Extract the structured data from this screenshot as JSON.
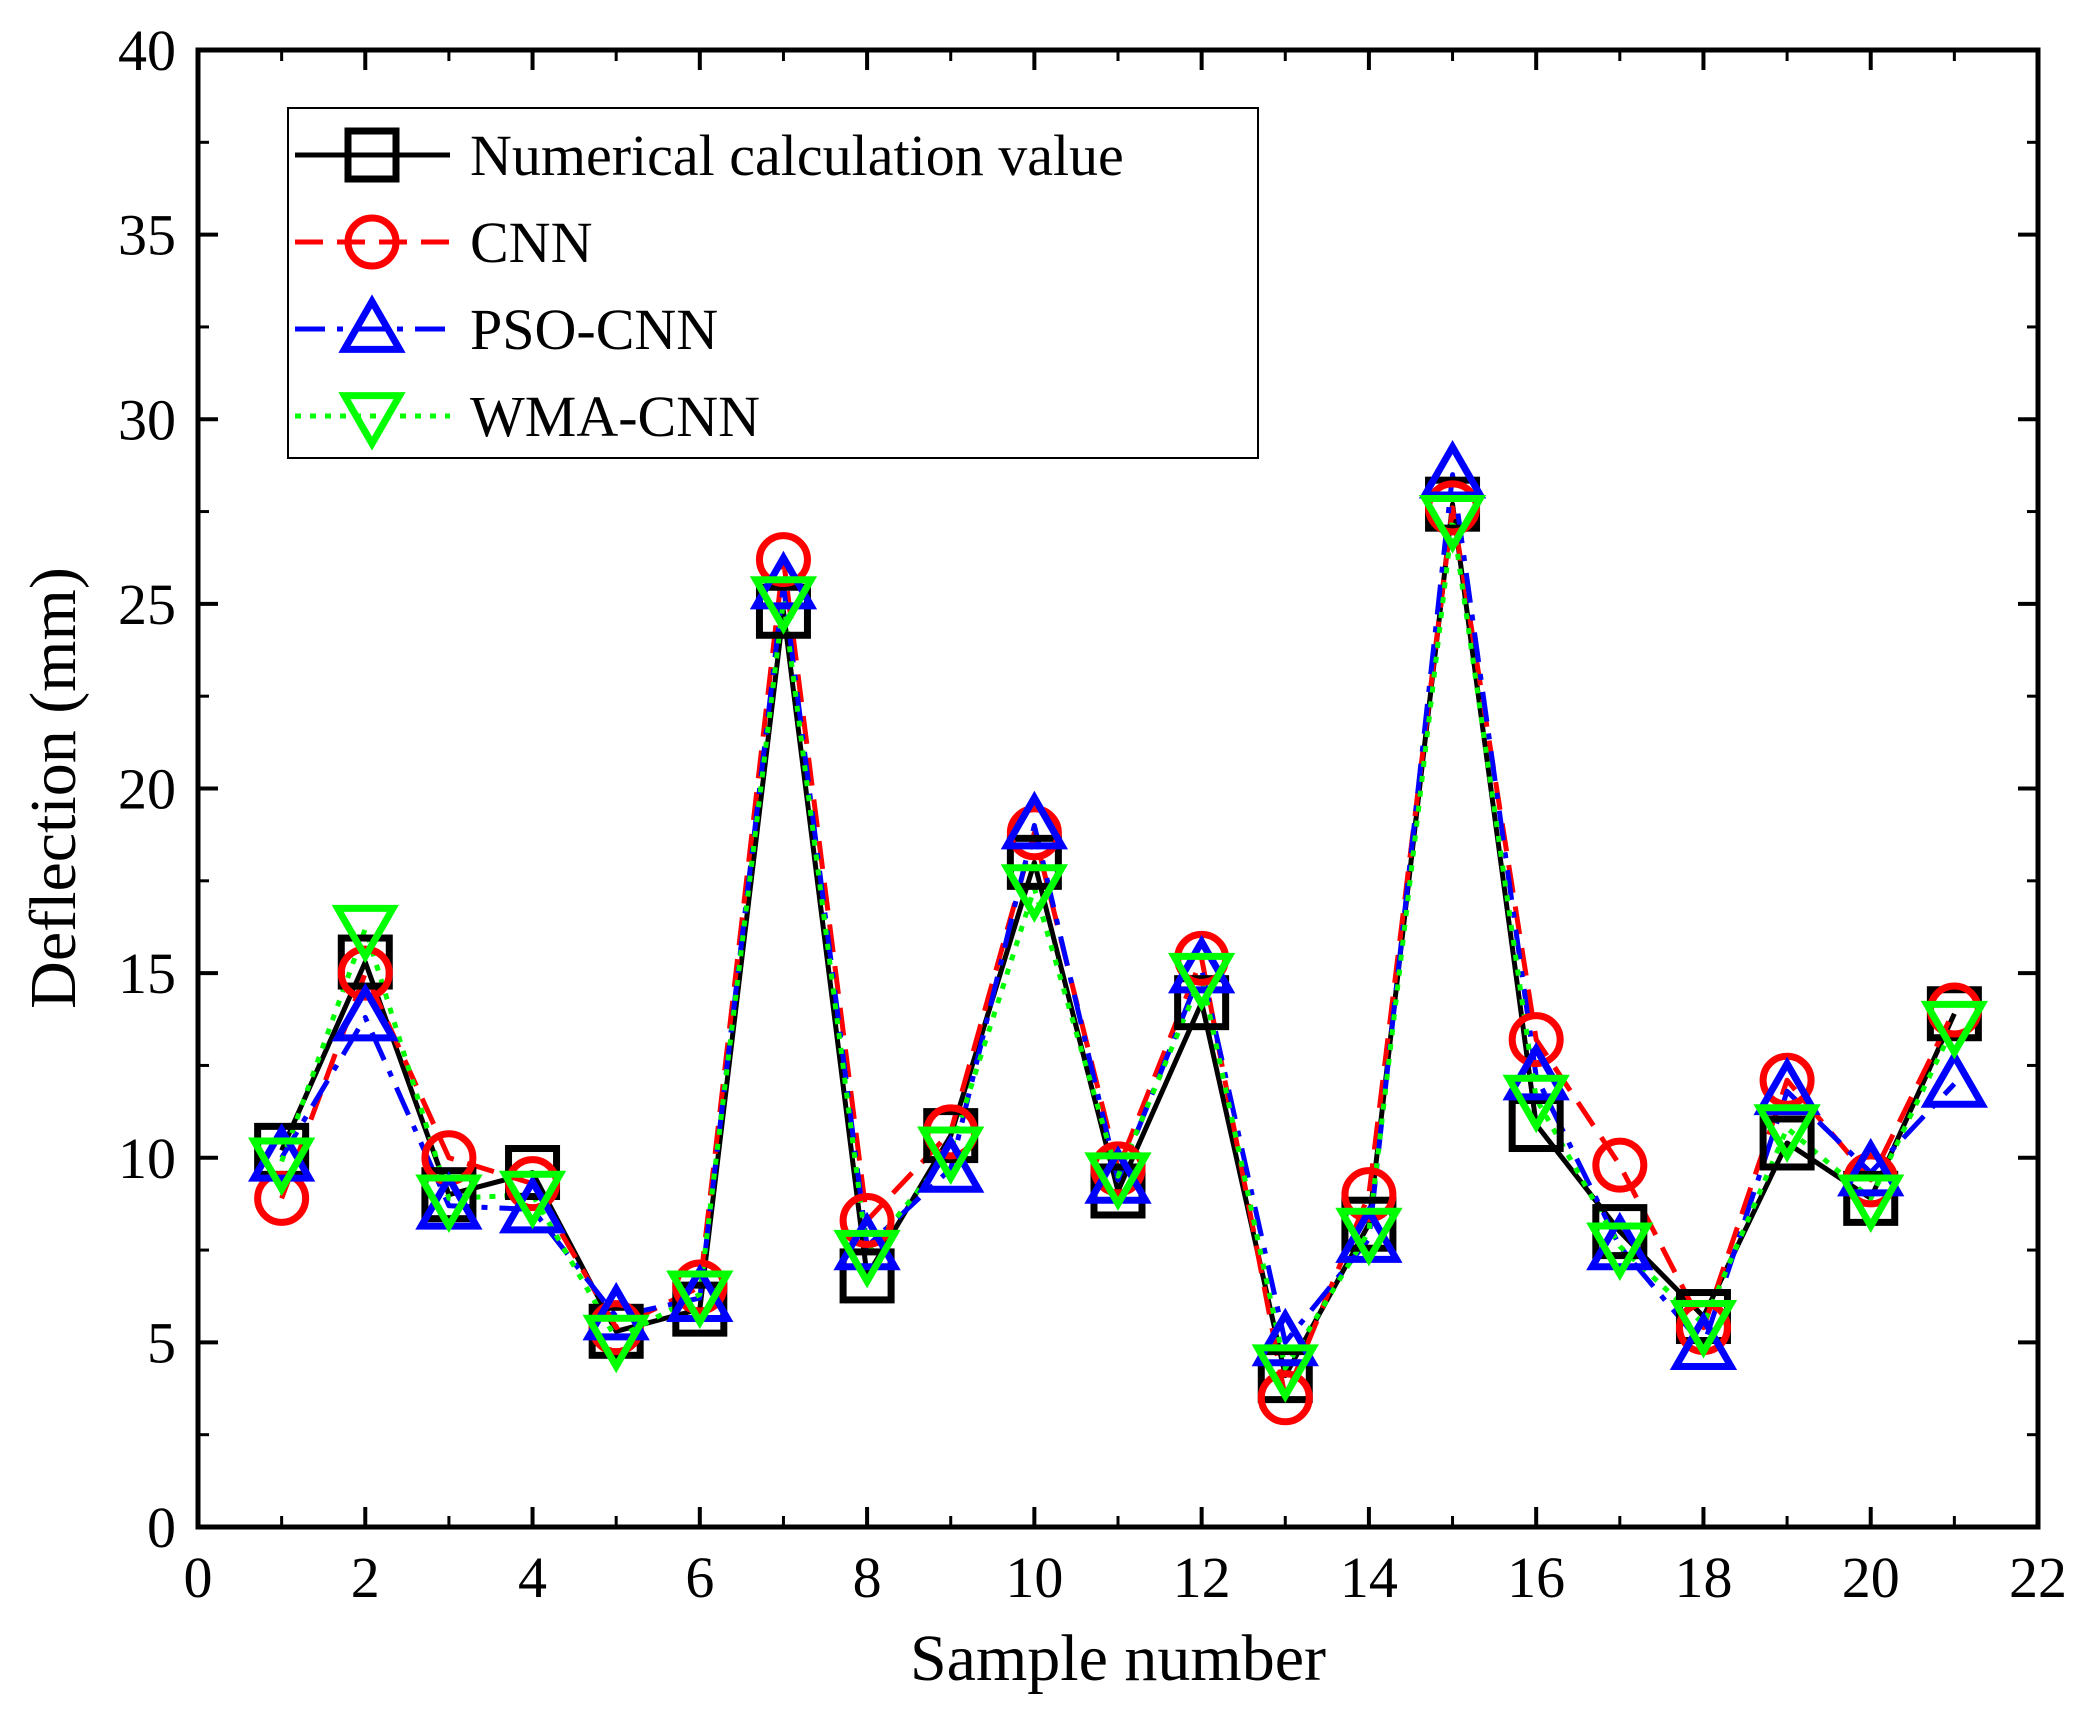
{
  "chart_data": {
    "type": "line",
    "title": "",
    "xlabel": "Sample number",
    "ylabel": "Deflection (mm)",
    "xlim": [
      0,
      22
    ],
    "ylim": [
      0,
      40
    ],
    "xticks": [
      0,
      2,
      4,
      6,
      8,
      10,
      12,
      14,
      16,
      18,
      20,
      22
    ],
    "yticks": [
      0,
      5,
      10,
      15,
      20,
      25,
      30,
      35,
      40
    ],
    "grid": false,
    "legend_position": "top-left",
    "x": [
      1,
      2,
      3,
      4,
      5,
      6,
      7,
      8,
      9,
      10,
      11,
      12,
      13,
      14,
      15,
      16,
      17,
      18,
      19,
      20,
      21
    ],
    "series": [
      {
        "name": "Numerical calculation value",
        "color": "#000000",
        "line": "solid",
        "marker": "square",
        "values": [
          10.2,
          15.3,
          9.0,
          9.6,
          5.3,
          5.9,
          24.8,
          6.8,
          10.6,
          18.0,
          9.1,
          14.2,
          4.1,
          8.2,
          27.7,
          10.9,
          8.0,
          5.7,
          10.4,
          8.9,
          13.9
        ]
      },
      {
        "name": "CNN",
        "color": "#ff0000",
        "line": "dash",
        "marker": "circle",
        "values": [
          8.9,
          15.0,
          10.0,
          9.3,
          5.4,
          6.5,
          26.2,
          8.3,
          10.7,
          18.8,
          9.7,
          15.4,
          3.5,
          9.0,
          27.6,
          13.2,
          9.8,
          5.4,
          12.1,
          9.4,
          14.0
        ]
      },
      {
        "name": "PSO-CNN",
        "color": "#0000ff",
        "line": "dashdot",
        "marker": "triangle-up",
        "values": [
          10.0,
          13.8,
          8.7,
          8.6,
          5.7,
          6.2,
          25.5,
          7.6,
          9.7,
          19.0,
          9.4,
          15.1,
          5.0,
          7.8,
          28.5,
          12.2,
          7.6,
          4.9,
          11.8,
          9.6,
          12.0
        ]
      },
      {
        "name": "WMA-CNN",
        "color": "#00ff00",
        "line": "dot",
        "marker": "triangle-down",
        "values": [
          9.9,
          16.2,
          8.9,
          9.0,
          5.1,
          6.3,
          25.1,
          7.4,
          10.2,
          17.3,
          9.5,
          14.9,
          4.3,
          8.0,
          27.3,
          11.6,
          7.6,
          5.5,
          10.8,
          8.9,
          13.6
        ]
      }
    ]
  }
}
